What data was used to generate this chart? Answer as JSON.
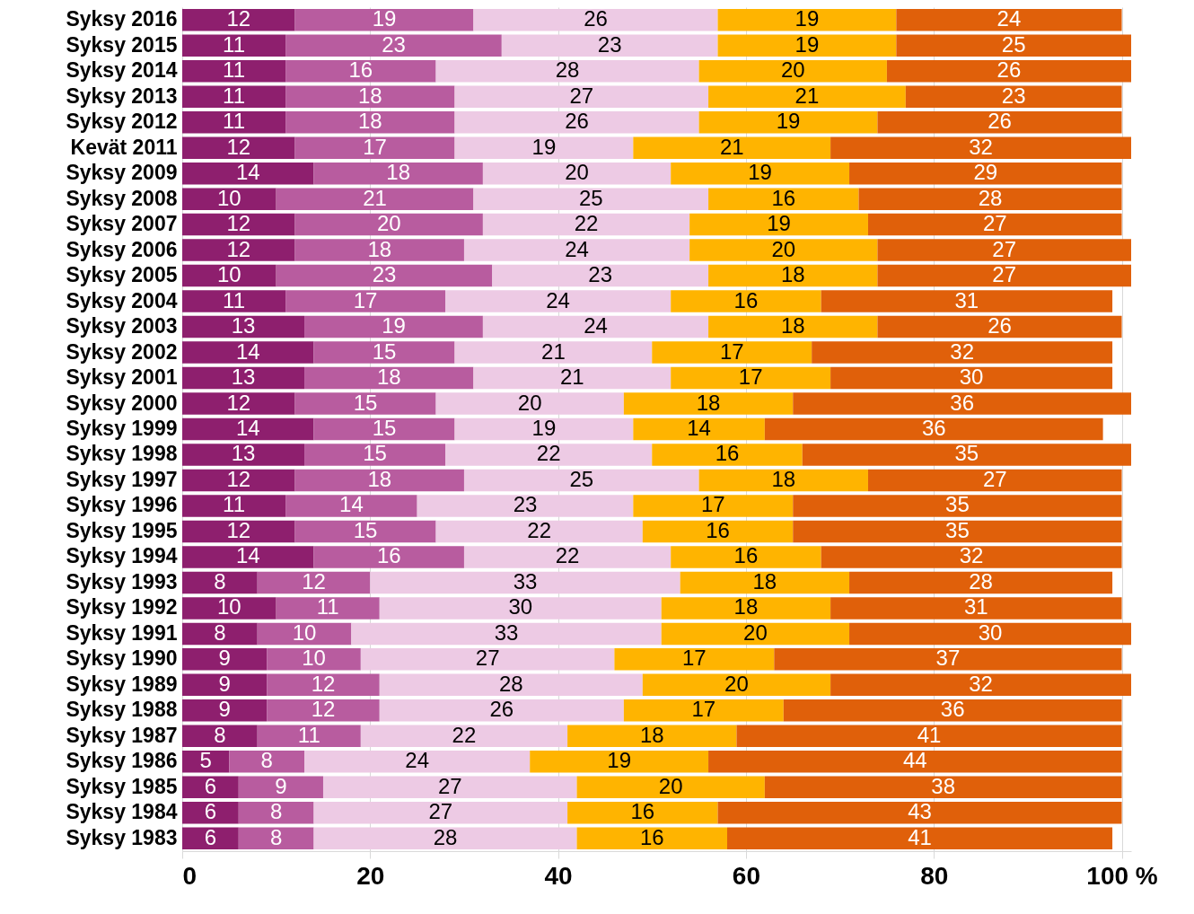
{
  "chart_data": {
    "type": "bar",
    "orientation": "horizontal",
    "stacked": true,
    "data_labels": true,
    "grid": "x",
    "categories": [
      "Syksy 2016",
      "Syksy 2015",
      "Syksy 2014",
      "Syksy 2013",
      "Syksy 2012",
      "Kevät 2011",
      "Syksy 2009",
      "Syksy 2008",
      "Syksy 2007",
      "Syksy 2006",
      "Syksy 2005",
      "Syksy 2004",
      "Syksy 2003",
      "Syksy 2002",
      "Syksy 2001",
      "Syksy 2000",
      "Syksy 1999",
      "Syksy 1998",
      "Syksy 1997",
      "Syksy 1996",
      "Syksy 1995",
      "Syksy 1994",
      "Syksy 1993",
      "Syksy 1992",
      "Syksy 1991",
      "Syksy 1990",
      "Syksy 1989",
      "Syksy 1988",
      "Syksy 1987",
      "Syksy 1986",
      "Syksy 1985",
      "Syksy 1984",
      "Syksy 1983"
    ],
    "xlim": [
      0,
      101
    ],
    "xticks": [
      0,
      20,
      40,
      60,
      80,
      {
        "value": 100,
        "label": "100 %"
      }
    ],
    "series": [
      {
        "color": "#8e1f6e",
        "values": [
          12,
          11,
          11,
          11,
          11,
          12,
          14,
          10,
          12,
          12,
          10,
          11,
          13,
          14,
          13,
          12,
          14,
          13,
          12,
          11,
          12,
          14,
          8,
          10,
          8,
          9,
          9,
          9,
          8,
          5,
          6,
          6,
          6
        ]
      },
      {
        "color": "#b85c9f",
        "values": [
          19,
          23,
          16,
          18,
          18,
          17,
          18,
          21,
          20,
          18,
          23,
          17,
          19,
          15,
          18,
          15,
          15,
          15,
          18,
          14,
          15,
          16,
          12,
          11,
          10,
          10,
          12,
          12,
          11,
          8,
          9,
          8,
          8
        ]
      },
      {
        "color": "#edcae4",
        "values": [
          26,
          23,
          28,
          27,
          26,
          19,
          20,
          25,
          22,
          24,
          23,
          24,
          24,
          21,
          21,
          20,
          19,
          22,
          25,
          23,
          22,
          22,
          33,
          30,
          33,
          27,
          28,
          26,
          22,
          24,
          27,
          27,
          28
        ]
      },
      {
        "color": "#ffb400",
        "values": [
          19,
          19,
          20,
          21,
          19,
          21,
          19,
          16,
          19,
          20,
          18,
          16,
          18,
          17,
          17,
          18,
          14,
          16,
          18,
          17,
          16,
          16,
          18,
          18,
          20,
          17,
          20,
          17,
          18,
          19,
          20,
          16,
          16
        ]
      },
      {
        "color": "#e0600a",
        "values": [
          24,
          25,
          26,
          23,
          26,
          32,
          29,
          28,
          27,
          27,
          27,
          31,
          26,
          32,
          30,
          36,
          36,
          35,
          27,
          35,
          35,
          32,
          28,
          31,
          30,
          37,
          32,
          36,
          41,
          44,
          38,
          43,
          41
        ]
      }
    ]
  }
}
